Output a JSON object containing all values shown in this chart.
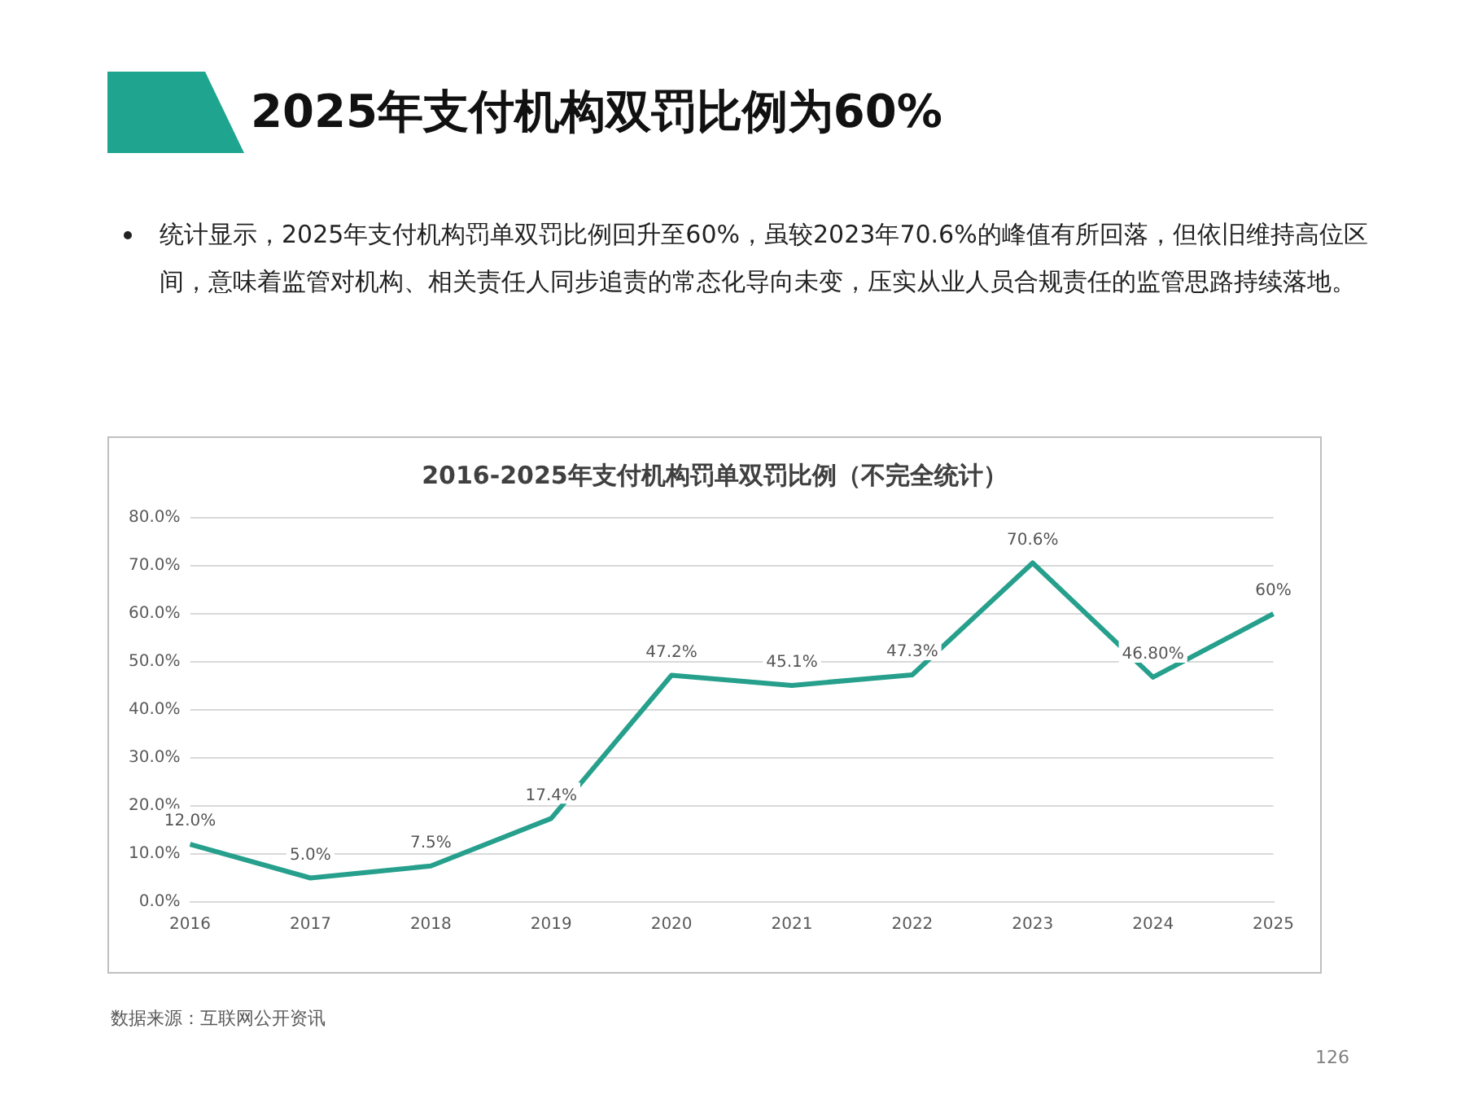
{
  "chart_data": {
    "type": "line",
    "title": "2025年支付机构双罚比例为60%",
    "subtitle": "2016-2025年支付机构罚单双罚比例（不完全统计）",
    "annotations": [
      "统计显示，2025年支付机构罚单双罚比例回升至60%，虽较2023年70.6%的峰值有所回落，但依旧维持高位区间，意味着监管对机构、相关责任人同步追责的常态化导向未变，压实从业人员合规责任的监管思路持续落地。",
      "数据来源：互联网公开资讯",
      "126"
    ],
    "categories": [
      "2016",
      "2017",
      "2018",
      "2019",
      "2020",
      "2021",
      "2022",
      "2023",
      "2024",
      "2025"
    ],
    "series": [
      {
        "color": "#26a08c",
        "values": [
          12.0,
          5.0,
          7.5,
          17.4,
          47.2,
          45.1,
          47.3,
          70.6,
          46.8,
          60
        ],
        "value_labels": [
          "12.0%",
          "5.0%",
          "7.5%",
          "17.4%",
          "47.2%",
          "45.1%",
          "47.3%",
          "70.6%",
          "46.80%",
          "60%"
        ]
      }
    ],
    "ylim": [
      0,
      80
    ],
    "yticks": [
      {
        "value": 0,
        "label": "0.0%"
      },
      {
        "value": 10,
        "label": "10.0%"
      },
      {
        "value": 20,
        "label": "20.0%"
      },
      {
        "value": 30,
        "label": "30.0%"
      },
      {
        "value": 40,
        "label": "40.0%"
      },
      {
        "value": 50,
        "label": "50.0%"
      },
      {
        "value": 60,
        "label": "60.0%"
      },
      {
        "value": 70,
        "label": "70.0%"
      },
      {
        "value": 80,
        "label": "80.0%"
      }
    ],
    "grid": "y",
    "legend": false,
    "marker": "none",
    "line_style": "solid"
  }
}
